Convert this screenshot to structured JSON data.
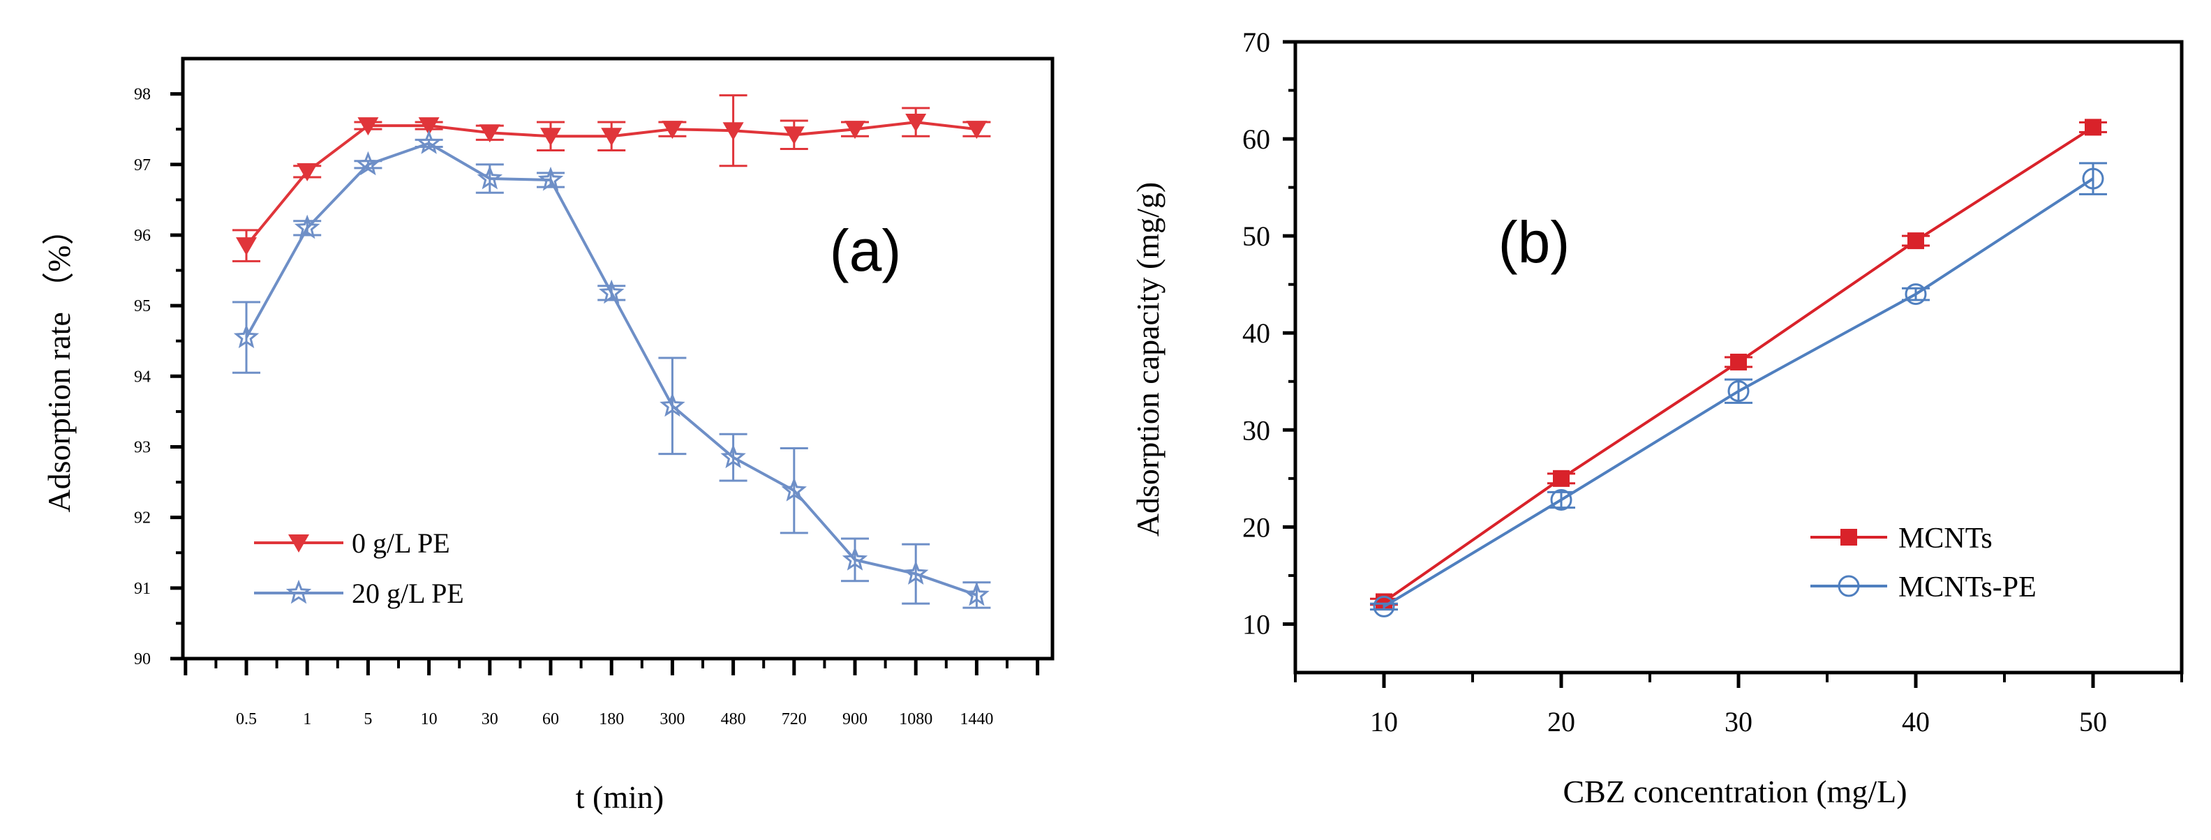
{
  "chart_data": [
    {
      "type": "line",
      "panel_label": "(a)",
      "xlabel": "t (min)",
      "ylabel": "Adsorption rate （%）",
      "ylim": [
        90,
        98.5
      ],
      "categories": [
        "0.5",
        "1",
        "5",
        "10",
        "30",
        "60",
        "180",
        "300",
        "480",
        "720",
        "900",
        "1080",
        "1440"
      ],
      "y_ticks": [
        90,
        91,
        92,
        93,
        94,
        95,
        96,
        97,
        98
      ],
      "y_tick_labels": [
        "90",
        "91",
        "92",
        "93",
        "94",
        "95",
        "96",
        "97",
        "98"
      ],
      "legend_position": "bottom-left",
      "series": [
        {
          "name": "0 g/L PE",
          "marker": "triangle-down",
          "color": "#e0353a",
          "values": [
            95.85,
            96.9,
            97.55,
            97.55,
            97.45,
            97.4,
            97.4,
            97.5,
            97.48,
            97.42,
            97.5,
            97.6,
            97.5
          ],
          "errors": [
            0.22,
            0.08,
            0.05,
            0.05,
            0.1,
            0.2,
            0.2,
            0.1,
            0.5,
            0.2,
            0.1,
            0.2,
            0.1
          ]
        },
        {
          "name": "20 g/L PE",
          "marker": "star",
          "color": "#6e8fc7",
          "values": [
            94.55,
            96.1,
            97.0,
            97.3,
            96.8,
            96.78,
            95.18,
            93.58,
            92.85,
            92.38,
            91.4,
            91.2,
            90.9
          ],
          "errors": [
            0.5,
            0.1,
            0.05,
            0.05,
            0.2,
            0.1,
            0.1,
            0.68,
            0.33,
            0.6,
            0.3,
            0.42,
            0.18
          ]
        }
      ]
    },
    {
      "type": "line",
      "panel_label": "(b)",
      "xlabel": "CBZ concentration (mg/L)",
      "ylabel": "Adsorption capacity (mg/g)",
      "xlim": [
        5,
        55
      ],
      "ylim": [
        5,
        70
      ],
      "x_ticks": [
        10,
        20,
        30,
        40,
        50
      ],
      "x_tick_labels": [
        "10",
        "20",
        "30",
        "40",
        "50"
      ],
      "y_ticks": [
        10,
        20,
        30,
        40,
        50,
        60,
        70
      ],
      "y_tick_labels": [
        "10",
        "20",
        "30",
        "40",
        "50",
        "60",
        "70"
      ],
      "legend_position": "bottom-right",
      "x": [
        10,
        20,
        30,
        40,
        50
      ],
      "series": [
        {
          "name": "MCNTs",
          "marker": "square",
          "color": "#d9222a",
          "values": [
            12.3,
            25.0,
            37.0,
            49.5,
            61.2
          ],
          "errors": [
            0.3,
            0.5,
            0.5,
            0.5,
            0.5
          ]
        },
        {
          "name": "MCNTs-PE",
          "marker": "circle-open",
          "color": "#4f7fbf",
          "values": [
            11.8,
            22.8,
            34.0,
            44.0,
            55.9
          ],
          "errors": [
            0.3,
            0.8,
            1.2,
            0.6,
            1.6
          ]
        }
      ]
    }
  ]
}
